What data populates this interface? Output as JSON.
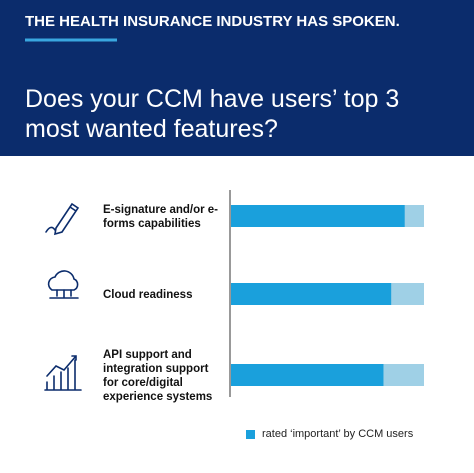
{
  "header": "THE HEALTH INSURANCE INDUSTRY HAS SPOKEN.",
  "chart_data": {
    "type": "bar",
    "orientation": "horizontal",
    "title": "Does your CCM have users’ top 3 most wanted features?",
    "categories": [
      "E-signature and/or e-forms capabilities",
      "Cloud readiness",
      "API support and integration support for core/digital experience systems"
    ],
    "series": [
      {
        "name": "rated ‘important’ by CCM users",
        "color": "#1aa0dc",
        "values": [
          90,
          83,
          79
        ]
      }
    ],
    "xlim": [
      0,
      100
    ],
    "track_color": "#9fd0e6"
  }
}
